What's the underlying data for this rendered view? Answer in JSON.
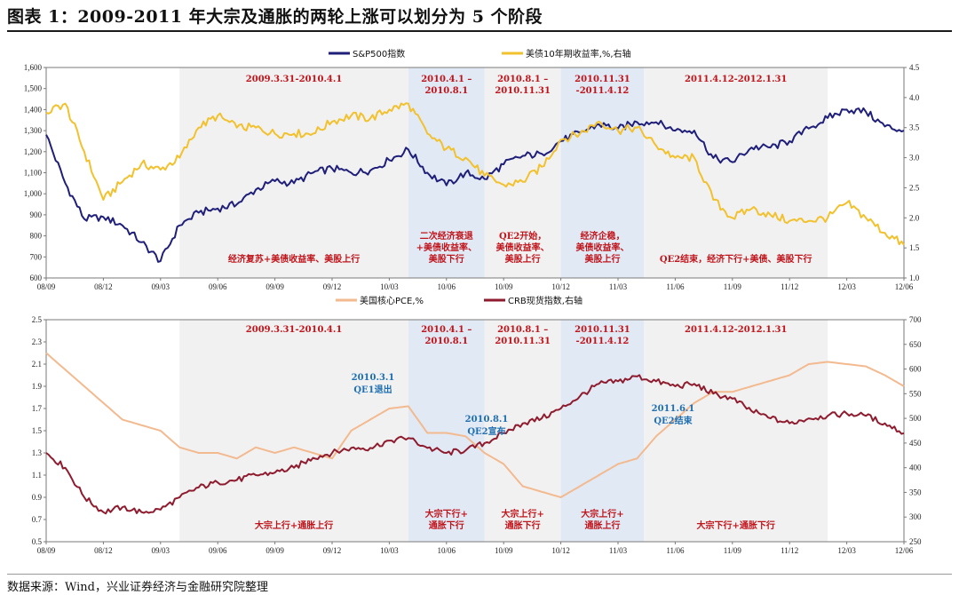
{
  "page": {
    "title": "图表 1：2009-2011 年大宗及通胀的两轮上涨可以划分为 5 个阶段",
    "source": "数据来源：Wind，兴业证券经济与金融研究院整理"
  },
  "colors": {
    "sp500": "#1f1f7a",
    "treasury": "#f2c12e",
    "pce": "#f3b98f",
    "crb": "#8e1b2e",
    "shade_gray": "#f1f1f1",
    "shade_blue": "#e1e9f4",
    "red_text": "#c0141b",
    "blue_text": "#1f6fb2"
  },
  "periods": [
    {
      "start": "2009-03-31",
      "end": "2010-04-01",
      "shade": "gray",
      "label": [
        "2009.3.31-2010.4.1"
      ]
    },
    {
      "start": "2010-04-01",
      "end": "2010-08-01",
      "shade": "blue",
      "label": [
        "2010.4.1 –",
        "2010.8.1"
      ]
    },
    {
      "start": "2010-08-01",
      "end": "2010-11-31",
      "shade": "gray",
      "label": [
        "2010.8.1  –",
        "2010.11.31"
      ]
    },
    {
      "start": "2010-11-31",
      "end": "2011-04-12",
      "shade": "blue",
      "label": [
        "2010.11.31",
        "-2011.4.12"
      ]
    },
    {
      "start": "2011-04-12",
      "end": "2012-01-31",
      "shade": "gray",
      "label": [
        "2011.4.12-2012.1.31"
      ]
    }
  ],
  "chart_data": [
    {
      "type": "line",
      "x_ticks": [
        "08/09",
        "08/12",
        "09/03",
        "09/06",
        "09/09",
        "09/12",
        "10/03",
        "10/06",
        "10/09",
        "10/12",
        "11/03",
        "11/06",
        "11/09",
        "11/12",
        "12/03",
        "12/06"
      ],
      "y_left": {
        "ticks": [
          "600",
          "700",
          "800",
          "900",
          "1,000",
          "1,100",
          "1,200",
          "1,300",
          "1,400",
          "1,500",
          "1,600"
        ],
        "ylim": [
          600,
          1600
        ]
      },
      "y_right": {
        "ticks": [
          "1.0",
          "1.5",
          "2.0",
          "2.5",
          "3.0",
          "3.5",
          "4.0",
          "4.5"
        ],
        "ylim": [
          1.0,
          4.5
        ]
      },
      "series": [
        {
          "name": "S&P500指数",
          "axis": "left",
          "points": [
            [
              "2008-09",
              1280
            ],
            [
              "2008-10",
              1050
            ],
            [
              "2008-11",
              880
            ],
            [
              "2008-12",
              890
            ],
            [
              "2009-01",
              850
            ],
            [
              "2009-02",
              770
            ],
            [
              "2009-03",
              680
            ],
            [
              "2009-04",
              850
            ],
            [
              "2009-05",
              910
            ],
            [
              "2009-06",
              930
            ],
            [
              "2009-07",
              950
            ],
            [
              "2009-08",
              1020
            ],
            [
              "2009-09",
              1060
            ],
            [
              "2009-10",
              1050
            ],
            [
              "2009-11",
              1100
            ],
            [
              "2009-12",
              1120
            ],
            [
              "2010-01",
              1100
            ],
            [
              "2010-02",
              1110
            ],
            [
              "2010-03",
              1160
            ],
            [
              "2010-04",
              1210
            ],
            [
              "2010-05",
              1100
            ],
            [
              "2010-06",
              1040
            ],
            [
              "2010-07",
              1100
            ],
            [
              "2010-08",
              1070
            ],
            [
              "2010-09",
              1140
            ],
            [
              "2010-10",
              1180
            ],
            [
              "2010-11",
              1190
            ],
            [
              "2010-12",
              1250
            ],
            [
              "2011-01",
              1290
            ],
            [
              "2011-02",
              1330
            ],
            [
              "2011-03",
              1310
            ],
            [
              "2011-04",
              1340
            ],
            [
              "2011-05",
              1340
            ],
            [
              "2011-06",
              1300
            ],
            [
              "2011-07",
              1300
            ],
            [
              "2011-08",
              1170
            ],
            [
              "2011-09",
              1150
            ],
            [
              "2011-10",
              1220
            ],
            [
              "2011-11",
              1220
            ],
            [
              "2011-12",
              1250
            ],
            [
              "2012-01",
              1310
            ],
            [
              "2012-02",
              1360
            ],
            [
              "2012-03",
              1400
            ],
            [
              "2012-04",
              1390
            ],
            [
              "2012-05",
              1320
            ],
            [
              "2012-06",
              1300
            ]
          ]
        },
        {
          "name": "美债10年期收益率,%,右轴",
          "axis": "right",
          "points": [
            [
              "2008-09",
              3.75
            ],
            [
              "2008-10",
              3.9
            ],
            [
              "2008-11",
              3.1
            ],
            [
              "2008-12",
              2.3
            ],
            [
              "2009-01",
              2.6
            ],
            [
              "2009-02",
              2.9
            ],
            [
              "2009-03",
              2.8
            ],
            [
              "2009-04",
              3.0
            ],
            [
              "2009-05",
              3.5
            ],
            [
              "2009-06",
              3.7
            ],
            [
              "2009-07",
              3.5
            ],
            [
              "2009-08",
              3.5
            ],
            [
              "2009-09",
              3.4
            ],
            [
              "2009-10",
              3.4
            ],
            [
              "2009-11",
              3.4
            ],
            [
              "2009-12",
              3.6
            ],
            [
              "2010-01",
              3.7
            ],
            [
              "2010-02",
              3.65
            ],
            [
              "2010-03",
              3.8
            ],
            [
              "2010-04",
              3.9
            ],
            [
              "2010-05",
              3.4
            ],
            [
              "2010-06",
              3.15
            ],
            [
              "2010-07",
              3.0
            ],
            [
              "2010-08",
              2.7
            ],
            [
              "2010-09",
              2.55
            ],
            [
              "2010-10",
              2.6
            ],
            [
              "2010-11",
              2.85
            ],
            [
              "2010-12",
              3.3
            ],
            [
              "2011-01",
              3.4
            ],
            [
              "2011-02",
              3.6
            ],
            [
              "2011-03",
              3.45
            ],
            [
              "2011-04",
              3.5
            ],
            [
              "2011-05",
              3.2
            ],
            [
              "2011-06",
              3.0
            ],
            [
              "2011-07",
              3.0
            ],
            [
              "2011-08",
              2.3
            ],
            [
              "2011-09",
              2.0
            ],
            [
              "2011-10",
              2.15
            ],
            [
              "2011-11",
              2.05
            ],
            [
              "2011-12",
              1.95
            ],
            [
              "2012-01",
              1.95
            ],
            [
              "2012-02",
              2.0
            ],
            [
              "2012-03",
              2.25
            ],
            [
              "2012-04",
              2.0
            ],
            [
              "2012-05",
              1.75
            ],
            [
              "2012-06",
              1.55
            ]
          ]
        }
      ],
      "annotations": [
        [
          "经济复苏+美债收益率、美股上行"
        ],
        [
          "二次经济衰退",
          "+美债收益率、",
          "美股下行"
        ],
        [
          "QE2开始，",
          "美债收益率、",
          "美股上行"
        ],
        [
          "经济企稳，",
          "美债收益率、",
          "美股上行"
        ],
        [
          "QE2结束，经济下行+美债、美股下行"
        ]
      ]
    },
    {
      "type": "line",
      "x_ticks": [
        "08/09",
        "08/12",
        "09/03",
        "09/06",
        "09/09",
        "09/12",
        "10/03",
        "10/06",
        "10/09",
        "10/12",
        "11/03",
        "11/06",
        "11/09",
        "11/12",
        "12/03",
        "12/06"
      ],
      "y_left": {
        "ticks": [
          "0.5",
          "0.7",
          "0.9",
          "1.1",
          "1.3",
          "1.5",
          "1.7",
          "1.9",
          "2.1",
          "2.3",
          "2.5"
        ],
        "ylim": [
          0.5,
          2.5
        ]
      },
      "y_right": {
        "ticks": [
          "250",
          "300",
          "350",
          "400",
          "450",
          "500",
          "550",
          "600",
          "650",
          "700"
        ],
        "ylim": [
          250,
          700
        ]
      },
      "series": [
        {
          "name": "美国核心PCE,%",
          "axis": "left",
          "points": [
            [
              "2008-09",
              2.2
            ],
            [
              "2008-10",
              2.05
            ],
            [
              "2008-11",
              1.9
            ],
            [
              "2008-12",
              1.75
            ],
            [
              "2009-01",
              1.6
            ],
            [
              "2009-02",
              1.55
            ],
            [
              "2009-03",
              1.5
            ],
            [
              "2009-04",
              1.35
            ],
            [
              "2009-05",
              1.3
            ],
            [
              "2009-06",
              1.3
            ],
            [
              "2009-07",
              1.25
            ],
            [
              "2009-08",
              1.35
            ],
            [
              "2009-09",
              1.3
            ],
            [
              "2009-10",
              1.35
            ],
            [
              "2009-11",
              1.3
            ],
            [
              "2009-12",
              1.25
            ],
            [
              "2010-01",
              1.5
            ],
            [
              "2010-02",
              1.6
            ],
            [
              "2010-03",
              1.7
            ],
            [
              "2010-04",
              1.72
            ],
            [
              "2010-05",
              1.48
            ],
            [
              "2010-06",
              1.48
            ],
            [
              "2010-07",
              1.45
            ],
            [
              "2010-08",
              1.3
            ],
            [
              "2010-09",
              1.2
            ],
            [
              "2010-10",
              1.0
            ],
            [
              "2010-11",
              0.95
            ],
            [
              "2010-12",
              0.9
            ],
            [
              "2011-01",
              1.0
            ],
            [
              "2011-02",
              1.1
            ],
            [
              "2011-03",
              1.2
            ],
            [
              "2011-04",
              1.25
            ],
            [
              "2011-05",
              1.45
            ],
            [
              "2011-06",
              1.6
            ],
            [
              "2011-07",
              1.75
            ],
            [
              "2011-08",
              1.85
            ],
            [
              "2011-09",
              1.85
            ],
            [
              "2011-10",
              1.9
            ],
            [
              "2011-11",
              1.95
            ],
            [
              "2011-12",
              2.0
            ],
            [
              "2012-01",
              2.1
            ],
            [
              "2012-02",
              2.12
            ],
            [
              "2012-03",
              2.1
            ],
            [
              "2012-04",
              2.08
            ],
            [
              "2012-05",
              2.0
            ],
            [
              "2012-06",
              1.9
            ]
          ]
        },
        {
          "name": "CRB现货指数,右轴",
          "axis": "right",
          "points": [
            [
              "2008-09",
              430
            ],
            [
              "2008-10",
              400
            ],
            [
              "2008-11",
              340
            ],
            [
              "2008-12",
              310
            ],
            [
              "2009-01",
              320
            ],
            [
              "2009-02",
              310
            ],
            [
              "2009-03",
              315
            ],
            [
              "2009-04",
              340
            ],
            [
              "2009-05",
              360
            ],
            [
              "2009-06",
              370
            ],
            [
              "2009-07",
              375
            ],
            [
              "2009-08",
              385
            ],
            [
              "2009-09",
              390
            ],
            [
              "2009-10",
              400
            ],
            [
              "2009-11",
              420
            ],
            [
              "2009-12",
              430
            ],
            [
              "2010-01",
              440
            ],
            [
              "2010-02",
              440
            ],
            [
              "2010-03",
              455
            ],
            [
              "2010-04",
              460
            ],
            [
              "2010-05",
              440
            ],
            [
              "2010-06",
              430
            ],
            [
              "2010-07",
              435
            ],
            [
              "2010-08",
              450
            ],
            [
              "2010-09",
              470
            ],
            [
              "2010-10",
              490
            ],
            [
              "2010-11",
              500
            ],
            [
              "2010-12",
              520
            ],
            [
              "2011-01",
              545
            ],
            [
              "2011-02",
              570
            ],
            [
              "2011-03",
              575
            ],
            [
              "2011-04",
              585
            ],
            [
              "2011-05",
              575
            ],
            [
              "2011-06",
              565
            ],
            [
              "2011-07",
              570
            ],
            [
              "2011-08",
              550
            ],
            [
              "2011-09",
              540
            ],
            [
              "2011-10",
              515
            ],
            [
              "2011-11",
              500
            ],
            [
              "2011-12",
              490
            ],
            [
              "2012-01",
              500
            ],
            [
              "2012-02",
              505
            ],
            [
              "2012-03",
              510
            ],
            [
              "2012-04",
              505
            ],
            [
              "2012-05",
              490
            ],
            [
              "2012-06",
              470
            ]
          ]
        }
      ],
      "annotations": [
        [
          "大宗上行+通胀上行"
        ],
        [
          "大宗下行+",
          "通胀下行"
        ],
        [
          "大宗上行+",
          "通胀下行"
        ],
        [
          "大宗上行+",
          "通胀上行"
        ],
        [
          "大宗下行+通胀下行"
        ]
      ],
      "events": [
        [
          "2010.3.1",
          "QE1退出"
        ],
        [
          "2010.8.1",
          "QE2宣布"
        ],
        [
          "2011.6.1",
          "QE2结束"
        ]
      ]
    }
  ]
}
